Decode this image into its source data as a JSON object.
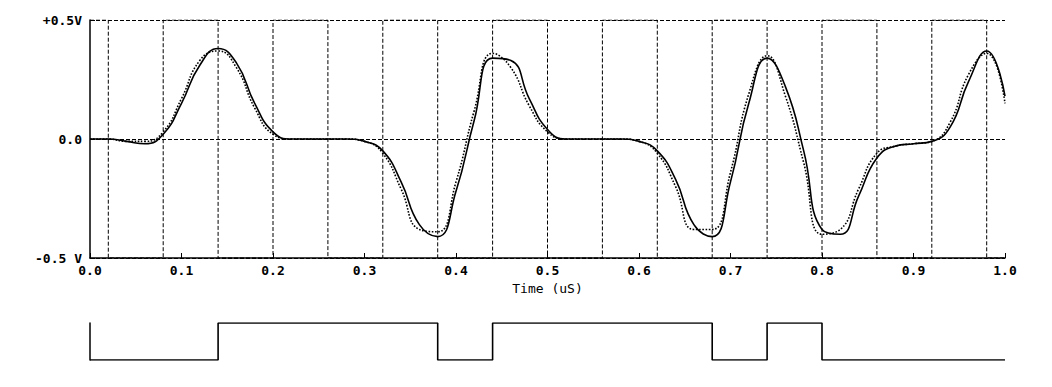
{
  "chart_data": [
    {
      "type": "line",
      "xlabel": "Time (uS)",
      "x": [
        0,
        0.02,
        0.04,
        0.06,
        0.08,
        0.1,
        0.12,
        0.14,
        0.16,
        0.18,
        0.2,
        0.22,
        0.24,
        0.26,
        0.28,
        0.3,
        0.32,
        0.34,
        0.36,
        0.38,
        0.4,
        0.42,
        0.44,
        0.46,
        0.48,
        0.5,
        0.52,
        0.54,
        0.56,
        0.58,
        0.6,
        0.62,
        0.64,
        0.66,
        0.68,
        0.7,
        0.72,
        0.74,
        0.76,
        0.78,
        0.8,
        0.82,
        0.84,
        0.86,
        0.88,
        0.9,
        0.92,
        0.94,
        0.96,
        0.98,
        1.0
      ],
      "xlim": [
        0,
        1.0
      ],
      "xticks": [
        {
          "value": 0,
          "label": "0.0"
        },
        0.1,
        0.2,
        0.3,
        0.4,
        0.5,
        0.6,
        0.7,
        0.8,
        0.9,
        {
          "value": 1.0,
          "label": "1.0"
        }
      ],
      "ylim": [
        -0.5,
        0.5
      ],
      "yticks": [
        {
          "value": -0.5,
          "label": "-0.5 V"
        },
        {
          "value": 0,
          "label": "0.0"
        },
        {
          "value": 0.5,
          "label": "+0.5V"
        }
      ],
      "grid": true,
      "series": [
        {
          "color": "#000000",
          "line_style": "solid",
          "values": [
            0,
            0,
            -0.01,
            -0.02,
            0.02,
            0.15,
            0.31,
            0.38,
            0.32,
            0.15,
            0.03,
            0,
            0,
            0,
            0,
            -0.01,
            -0.05,
            -0.18,
            -0.36,
            -0.41,
            -0.22,
            0.08,
            0.34,
            0.33,
            0.17,
            0.04,
            0,
            0,
            0,
            0,
            -0.01,
            -0.05,
            -0.17,
            -0.36,
            -0.41,
            -0.18,
            0.15,
            0.34,
            0.22,
            -0.05,
            -0.38,
            -0.4,
            -0.24,
            -0.08,
            -0.03,
            -0.02,
            -0.01,
            0.05,
            0.24,
            0.37,
            0.18
          ]
        },
        {
          "color": "#000000",
          "line_style": "dotted",
          "values": [
            0,
            0,
            -0.01,
            -0.01,
            0.03,
            0.17,
            0.33,
            0.37,
            0.3,
            0.13,
            0.02,
            0,
            0,
            0,
            0,
            -0.01,
            -0.06,
            -0.21,
            -0.38,
            -0.39,
            -0.18,
            0.12,
            0.36,
            0.3,
            0.14,
            0.03,
            0,
            0,
            0,
            0,
            -0.01,
            -0.06,
            -0.2,
            -0.38,
            -0.38,
            -0.14,
            0.19,
            0.35,
            0.18,
            -0.1,
            -0.4,
            -0.38,
            -0.21,
            -0.06,
            -0.03,
            -0.02,
            -0.01,
            0.07,
            0.27,
            0.36,
            0.15
          ]
        },
        {
          "color": "#000000",
          "line_style": "dashed",
          "x": [
            0,
            0.02,
            0.02,
            0.08,
            0.08,
            0.14,
            0.14,
            0.2,
            0.2,
            0.26,
            0.26,
            0.32,
            0.32,
            0.38,
            0.38,
            0.44,
            0.44,
            0.5,
            0.5,
            0.56,
            0.56,
            0.62,
            0.62,
            0.68,
            0.68,
            0.74,
            0.74,
            0.8,
            0.8,
            0.86,
            0.86,
            0.92,
            0.92,
            0.98,
            0.98,
            1.0
          ],
          "values": [
            0.5,
            0.5,
            -0.5,
            -0.5,
            0.5,
            0.5,
            -0.5,
            -0.5,
            0.5,
            0.5,
            -0.5,
            -0.5,
            0.5,
            0.5,
            -0.5,
            -0.5,
            0.5,
            0.5,
            -0.5,
            -0.5,
            0.5,
            0.5,
            -0.5,
            -0.5,
            0.5,
            0.5,
            -0.5,
            -0.5,
            0.5,
            0.5,
            -0.5,
            -0.5,
            0.5,
            0.5,
            -0.5,
            -0.5
          ]
        }
      ]
    },
    {
      "type": "line",
      "x": [
        0,
        0.14,
        0.14,
        0.38,
        0.38,
        0.44,
        0.44,
        0.68,
        0.68,
        0.74,
        0.74,
        0.8,
        0.8,
        1.0
      ],
      "values": [
        0,
        0,
        1,
        1,
        0,
        0,
        1,
        1,
        0,
        0,
        1,
        1,
        0,
        0
      ],
      "xlim": [
        0,
        1.0
      ],
      "ylim": [
        0,
        1
      ],
      "color": "#000000",
      "line_style": "solid",
      "tick_labels": false
    }
  ]
}
